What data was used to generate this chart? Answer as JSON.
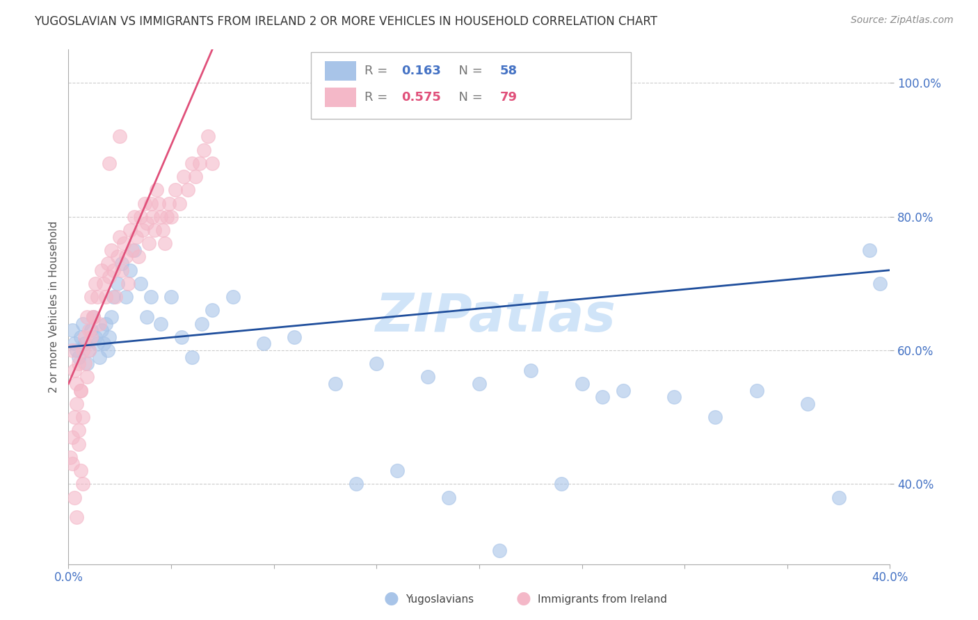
{
  "title": "YUGOSLAVIAN VS IMMIGRANTS FROM IRELAND 2 OR MORE VEHICLES IN HOUSEHOLD CORRELATION CHART",
  "source": "Source: ZipAtlas.com",
  "ylabel": "2 or more Vehicles in Household",
  "xlim": [
    0.0,
    0.4
  ],
  "ylim": [
    0.28,
    1.05
  ],
  "xticks": [
    0.0,
    0.05,
    0.1,
    0.15,
    0.2,
    0.25,
    0.3,
    0.35,
    0.4
  ],
  "xtick_labels": [
    "0.0%",
    "",
    "",
    "",
    "",
    "",
    "",
    "",
    "40.0%"
  ],
  "yticks": [
    0.4,
    0.6,
    0.8,
    1.0
  ],
  "ytick_labels": [
    "40.0%",
    "60.0%",
    "80.0%",
    "100.0%"
  ],
  "axis_color": "#4472c4",
  "series1_label": "Yugoslavians",
  "series1_R": "0.163",
  "series1_N": "58",
  "series1_color": "#a8c4e8",
  "series1_line_color": "#1f4e9c",
  "series2_label": "Immigrants from Ireland",
  "series2_R": "0.575",
  "series2_N": "79",
  "series2_color": "#f4b8c8",
  "series2_line_color": "#e0507a",
  "watermark": "ZIPatlas",
  "watermark_color": "#d0e4f8",
  "series1_x": [
    0.002,
    0.003,
    0.004,
    0.005,
    0.006,
    0.007,
    0.008,
    0.009,
    0.01,
    0.011,
    0.012,
    0.013,
    0.014,
    0.015,
    0.016,
    0.017,
    0.018,
    0.019,
    0.02,
    0.021,
    0.022,
    0.024,
    0.026,
    0.028,
    0.03,
    0.032,
    0.035,
    0.038,
    0.04,
    0.045,
    0.05,
    0.055,
    0.06,
    0.065,
    0.07,
    0.08,
    0.095,
    0.11,
    0.13,
    0.15,
    0.175,
    0.2,
    0.225,
    0.25,
    0.27,
    0.295,
    0.315,
    0.335,
    0.36,
    0.375,
    0.39,
    0.395,
    0.14,
    0.16,
    0.185,
    0.21,
    0.24,
    0.26
  ],
  "series1_y": [
    0.63,
    0.61,
    0.6,
    0.59,
    0.62,
    0.64,
    0.61,
    0.58,
    0.6,
    0.63,
    0.65,
    0.62,
    0.61,
    0.59,
    0.63,
    0.61,
    0.64,
    0.6,
    0.62,
    0.65,
    0.68,
    0.7,
    0.73,
    0.68,
    0.72,
    0.75,
    0.7,
    0.65,
    0.68,
    0.64,
    0.68,
    0.62,
    0.59,
    0.64,
    0.66,
    0.68,
    0.61,
    0.62,
    0.55,
    0.58,
    0.56,
    0.55,
    0.57,
    0.55,
    0.54,
    0.53,
    0.5,
    0.54,
    0.52,
    0.38,
    0.75,
    0.7,
    0.4,
    0.42,
    0.38,
    0.3,
    0.4,
    0.53
  ],
  "series2_x": [
    0.001,
    0.002,
    0.003,
    0.004,
    0.005,
    0.006,
    0.007,
    0.008,
    0.009,
    0.01,
    0.011,
    0.012,
    0.013,
    0.014,
    0.015,
    0.016,
    0.017,
    0.018,
    0.019,
    0.02,
    0.021,
    0.022,
    0.023,
    0.024,
    0.025,
    0.026,
    0.027,
    0.028,
    0.029,
    0.03,
    0.031,
    0.032,
    0.033,
    0.034,
    0.035,
    0.036,
    0.037,
    0.038,
    0.039,
    0.04,
    0.041,
    0.042,
    0.043,
    0.044,
    0.045,
    0.046,
    0.047,
    0.048,
    0.049,
    0.05,
    0.052,
    0.054,
    0.056,
    0.058,
    0.06,
    0.062,
    0.064,
    0.066,
    0.068,
    0.07,
    0.002,
    0.003,
    0.004,
    0.005,
    0.006,
    0.007,
    0.008,
    0.009,
    0.01,
    0.011,
    0.012,
    0.002,
    0.003,
    0.004,
    0.005,
    0.006,
    0.007,
    0.02,
    0.025
  ],
  "series2_y": [
    0.44,
    0.47,
    0.5,
    0.55,
    0.58,
    0.54,
    0.6,
    0.62,
    0.65,
    0.63,
    0.68,
    0.65,
    0.7,
    0.68,
    0.64,
    0.72,
    0.7,
    0.68,
    0.73,
    0.71,
    0.75,
    0.72,
    0.68,
    0.74,
    0.77,
    0.72,
    0.76,
    0.74,
    0.7,
    0.78,
    0.75,
    0.8,
    0.77,
    0.74,
    0.8,
    0.78,
    0.82,
    0.79,
    0.76,
    0.82,
    0.8,
    0.78,
    0.84,
    0.82,
    0.8,
    0.78,
    0.76,
    0.8,
    0.82,
    0.8,
    0.84,
    0.82,
    0.86,
    0.84,
    0.88,
    0.86,
    0.88,
    0.9,
    0.92,
    0.88,
    0.6,
    0.57,
    0.52,
    0.48,
    0.54,
    0.5,
    0.58,
    0.56,
    0.6,
    0.62,
    0.65,
    0.43,
    0.38,
    0.35,
    0.46,
    0.42,
    0.4,
    0.88,
    0.92
  ],
  "trend1_x0": 0.0,
  "trend1_y0": 0.605,
  "trend1_x1": 0.4,
  "trend1_y1": 0.72,
  "trend2_x0": 0.0,
  "trend2_y0": 0.55,
  "trend2_x1": 0.07,
  "trend2_y1": 1.05
}
